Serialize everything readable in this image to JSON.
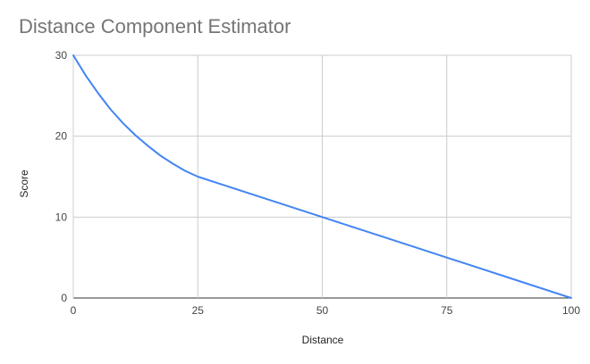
{
  "chart_data": {
    "type": "line",
    "title": "Distance Component Estimator",
    "xlabel": "Distance",
    "ylabel": "Score",
    "xlim": [
      0,
      100
    ],
    "ylim": [
      0,
      30
    ],
    "xticks": [
      0,
      25,
      50,
      75,
      100
    ],
    "yticks": [
      0,
      10,
      20,
      30
    ],
    "grid": true,
    "legend": "none",
    "series": [
      {
        "color": "#4285f4",
        "x": [
          0,
          2.5,
          5,
          7.5,
          10,
          12.5,
          15,
          17.5,
          20,
          22.5,
          25,
          30,
          40,
          50,
          60,
          70,
          75,
          80,
          90,
          100
        ],
        "y": [
          30,
          27.5,
          25.3,
          23.3,
          21.6,
          20.1,
          18.8,
          17.6,
          16.6,
          15.7,
          15,
          14,
          12,
          10,
          8,
          6,
          5,
          4,
          2,
          0
        ]
      }
    ]
  }
}
